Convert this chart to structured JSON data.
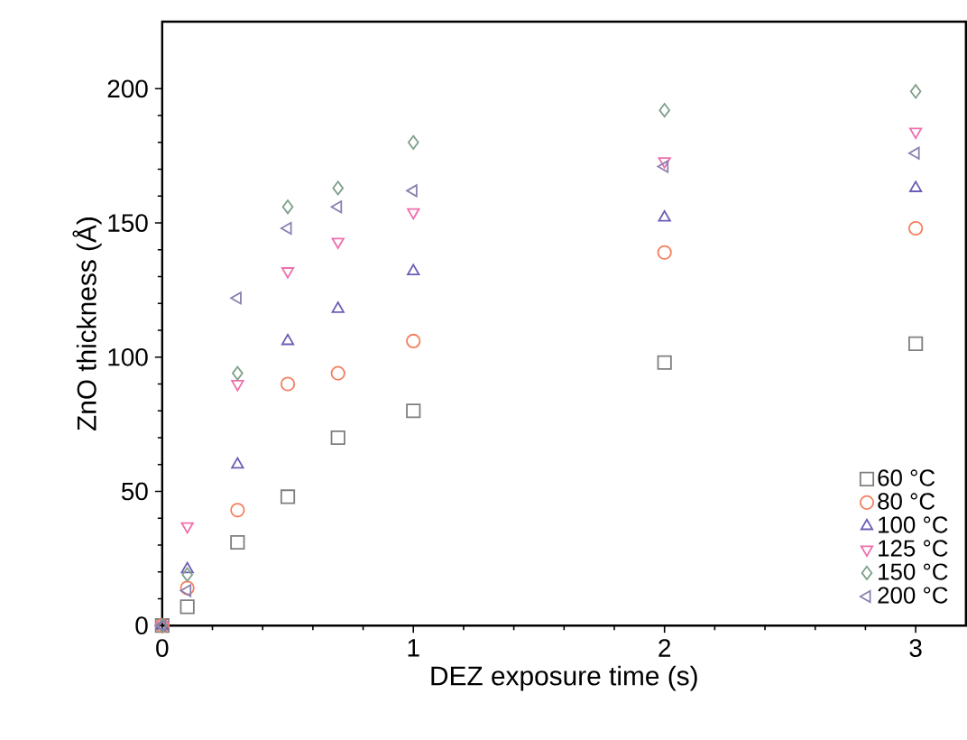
{
  "chart_data": {
    "type": "scatter",
    "xlabel": "DEZ exposure time (s)",
    "ylabel": "ZnO thickness (Å)",
    "xlim": [
      0,
      3.2
    ],
    "ylim": [
      0,
      225
    ],
    "xticks": [
      0,
      1,
      2,
      3
    ],
    "yticks": [
      0,
      50,
      100,
      150,
      200
    ],
    "grid": false,
    "legend": "bottom right",
    "series": [
      {
        "name": "60 °C",
        "color": "#7f7f7f",
        "marker": "square",
        "x": [
          0,
          0.1,
          0.3,
          0.5,
          0.7,
          1,
          2,
          3
        ],
        "values": [
          0,
          7,
          31,
          48,
          70,
          80,
          98,
          105
        ]
      },
      {
        "name": "80 °C",
        "color": "#f47f5f",
        "marker": "circle",
        "x": [
          0,
          0.1,
          0.3,
          0.5,
          0.7,
          1,
          2,
          3
        ],
        "values": [
          0,
          14,
          43,
          90,
          94,
          106,
          139,
          148
        ]
      },
      {
        "name": "100 °C",
        "color": "#6b5fb5",
        "marker": "triangle",
        "x": [
          0,
          0.1,
          0.3,
          0.5,
          0.7,
          1,
          2,
          3
        ],
        "values": [
          0,
          21,
          60,
          106,
          118,
          132,
          152,
          163
        ]
      },
      {
        "name": "125 °C",
        "color": "#ef6fae",
        "marker": "triangle-down",
        "x": [
          0,
          0.1,
          0.3,
          0.5,
          0.7,
          1,
          2,
          3
        ],
        "values": [
          0,
          37,
          90,
          132,
          143,
          154,
          173,
          184
        ]
      },
      {
        "name": "150 °C",
        "color": "#7fa08a",
        "marker": "diamond",
        "x": [
          0,
          0.1,
          0.3,
          0.5,
          0.7,
          1,
          2,
          3
        ],
        "values": [
          0,
          19,
          94,
          156,
          163,
          180,
          192,
          199
        ]
      },
      {
        "name": "200 °C",
        "color": "#8a80b0",
        "marker": "triangle-left",
        "x": [
          0,
          0.1,
          0.3,
          0.5,
          0.7,
          1,
          2,
          3
        ],
        "values": [
          0,
          13,
          122,
          148,
          156,
          162,
          171,
          176
        ]
      }
    ]
  }
}
